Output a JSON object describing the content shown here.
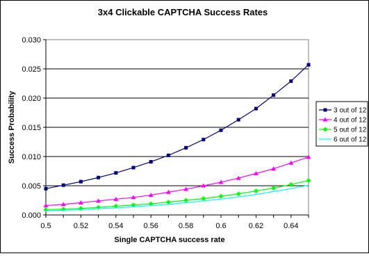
{
  "chart_data": {
    "type": "line",
    "title": "3x4 Clickable CAPTCHA Success Rates",
    "xlabel": "Single CAPTCHA success rate",
    "ylabel": "Success Probability",
    "x": [
      0.5,
      0.51,
      0.52,
      0.53,
      0.54,
      0.55,
      0.56,
      0.57,
      0.58,
      0.59,
      0.6,
      0.61,
      0.62,
      0.63,
      0.64,
      0.65
    ],
    "xlim": [
      0.5,
      0.65
    ],
    "ylim": [
      0,
      0.03
    ],
    "x_ticks": [
      "0.5",
      "0.52",
      "0.54",
      "0.56",
      "0.58",
      "0.6",
      "0.62",
      "0.64"
    ],
    "x_tick_values": [
      0.5,
      0.52,
      0.54,
      0.56,
      0.58,
      0.6,
      0.62,
      0.64
    ],
    "y_ticks": [
      "0.000",
      "0.005",
      "0.010",
      "0.015",
      "0.020",
      "0.025",
      "0.030"
    ],
    "y_tick_values": [
      0,
      0.005,
      0.01,
      0.015,
      0.02,
      0.025,
      0.03
    ],
    "grid": "horizontal",
    "legend_position": "right",
    "series": [
      {
        "name": "3 out of 12",
        "color": "#000080",
        "marker": "square",
        "values": [
          0.0045,
          0.0051,
          0.0057,
          0.0064,
          0.0072,
          0.0081,
          0.0091,
          0.0102,
          0.0115,
          0.0129,
          0.0145,
          0.0163,
          0.0182,
          0.0205,
          0.0229,
          0.0257
        ]
      },
      {
        "name": "4 out of 12",
        "color": "#ff00ff",
        "marker": "triangle",
        "values": [
          0.0016,
          0.0018,
          0.0021,
          0.0024,
          0.0027,
          0.003,
          0.0034,
          0.0039,
          0.0044,
          0.005,
          0.0056,
          0.0063,
          0.0071,
          0.0079,
          0.0089,
          0.0099
        ]
      },
      {
        "name": "5 out of 12",
        "color": "#00ff00",
        "marker": "diamond",
        "values": [
          0.0009,
          0.001,
          0.0011,
          0.0013,
          0.0015,
          0.0017,
          0.0019,
          0.0022,
          0.0025,
          0.0028,
          0.0032,
          0.0036,
          0.0041,
          0.0046,
          0.0052,
          0.0059
        ]
      },
      {
        "name": "6 out of 12",
        "color": "#00ffff",
        "marker": "none",
        "values": [
          0.0007,
          0.0008,
          0.0009,
          0.0011,
          0.0012,
          0.0014,
          0.0016,
          0.0018,
          0.0021,
          0.0024,
          0.0027,
          0.0031,
          0.0035,
          0.004,
          0.0045,
          0.0051
        ]
      }
    ]
  }
}
